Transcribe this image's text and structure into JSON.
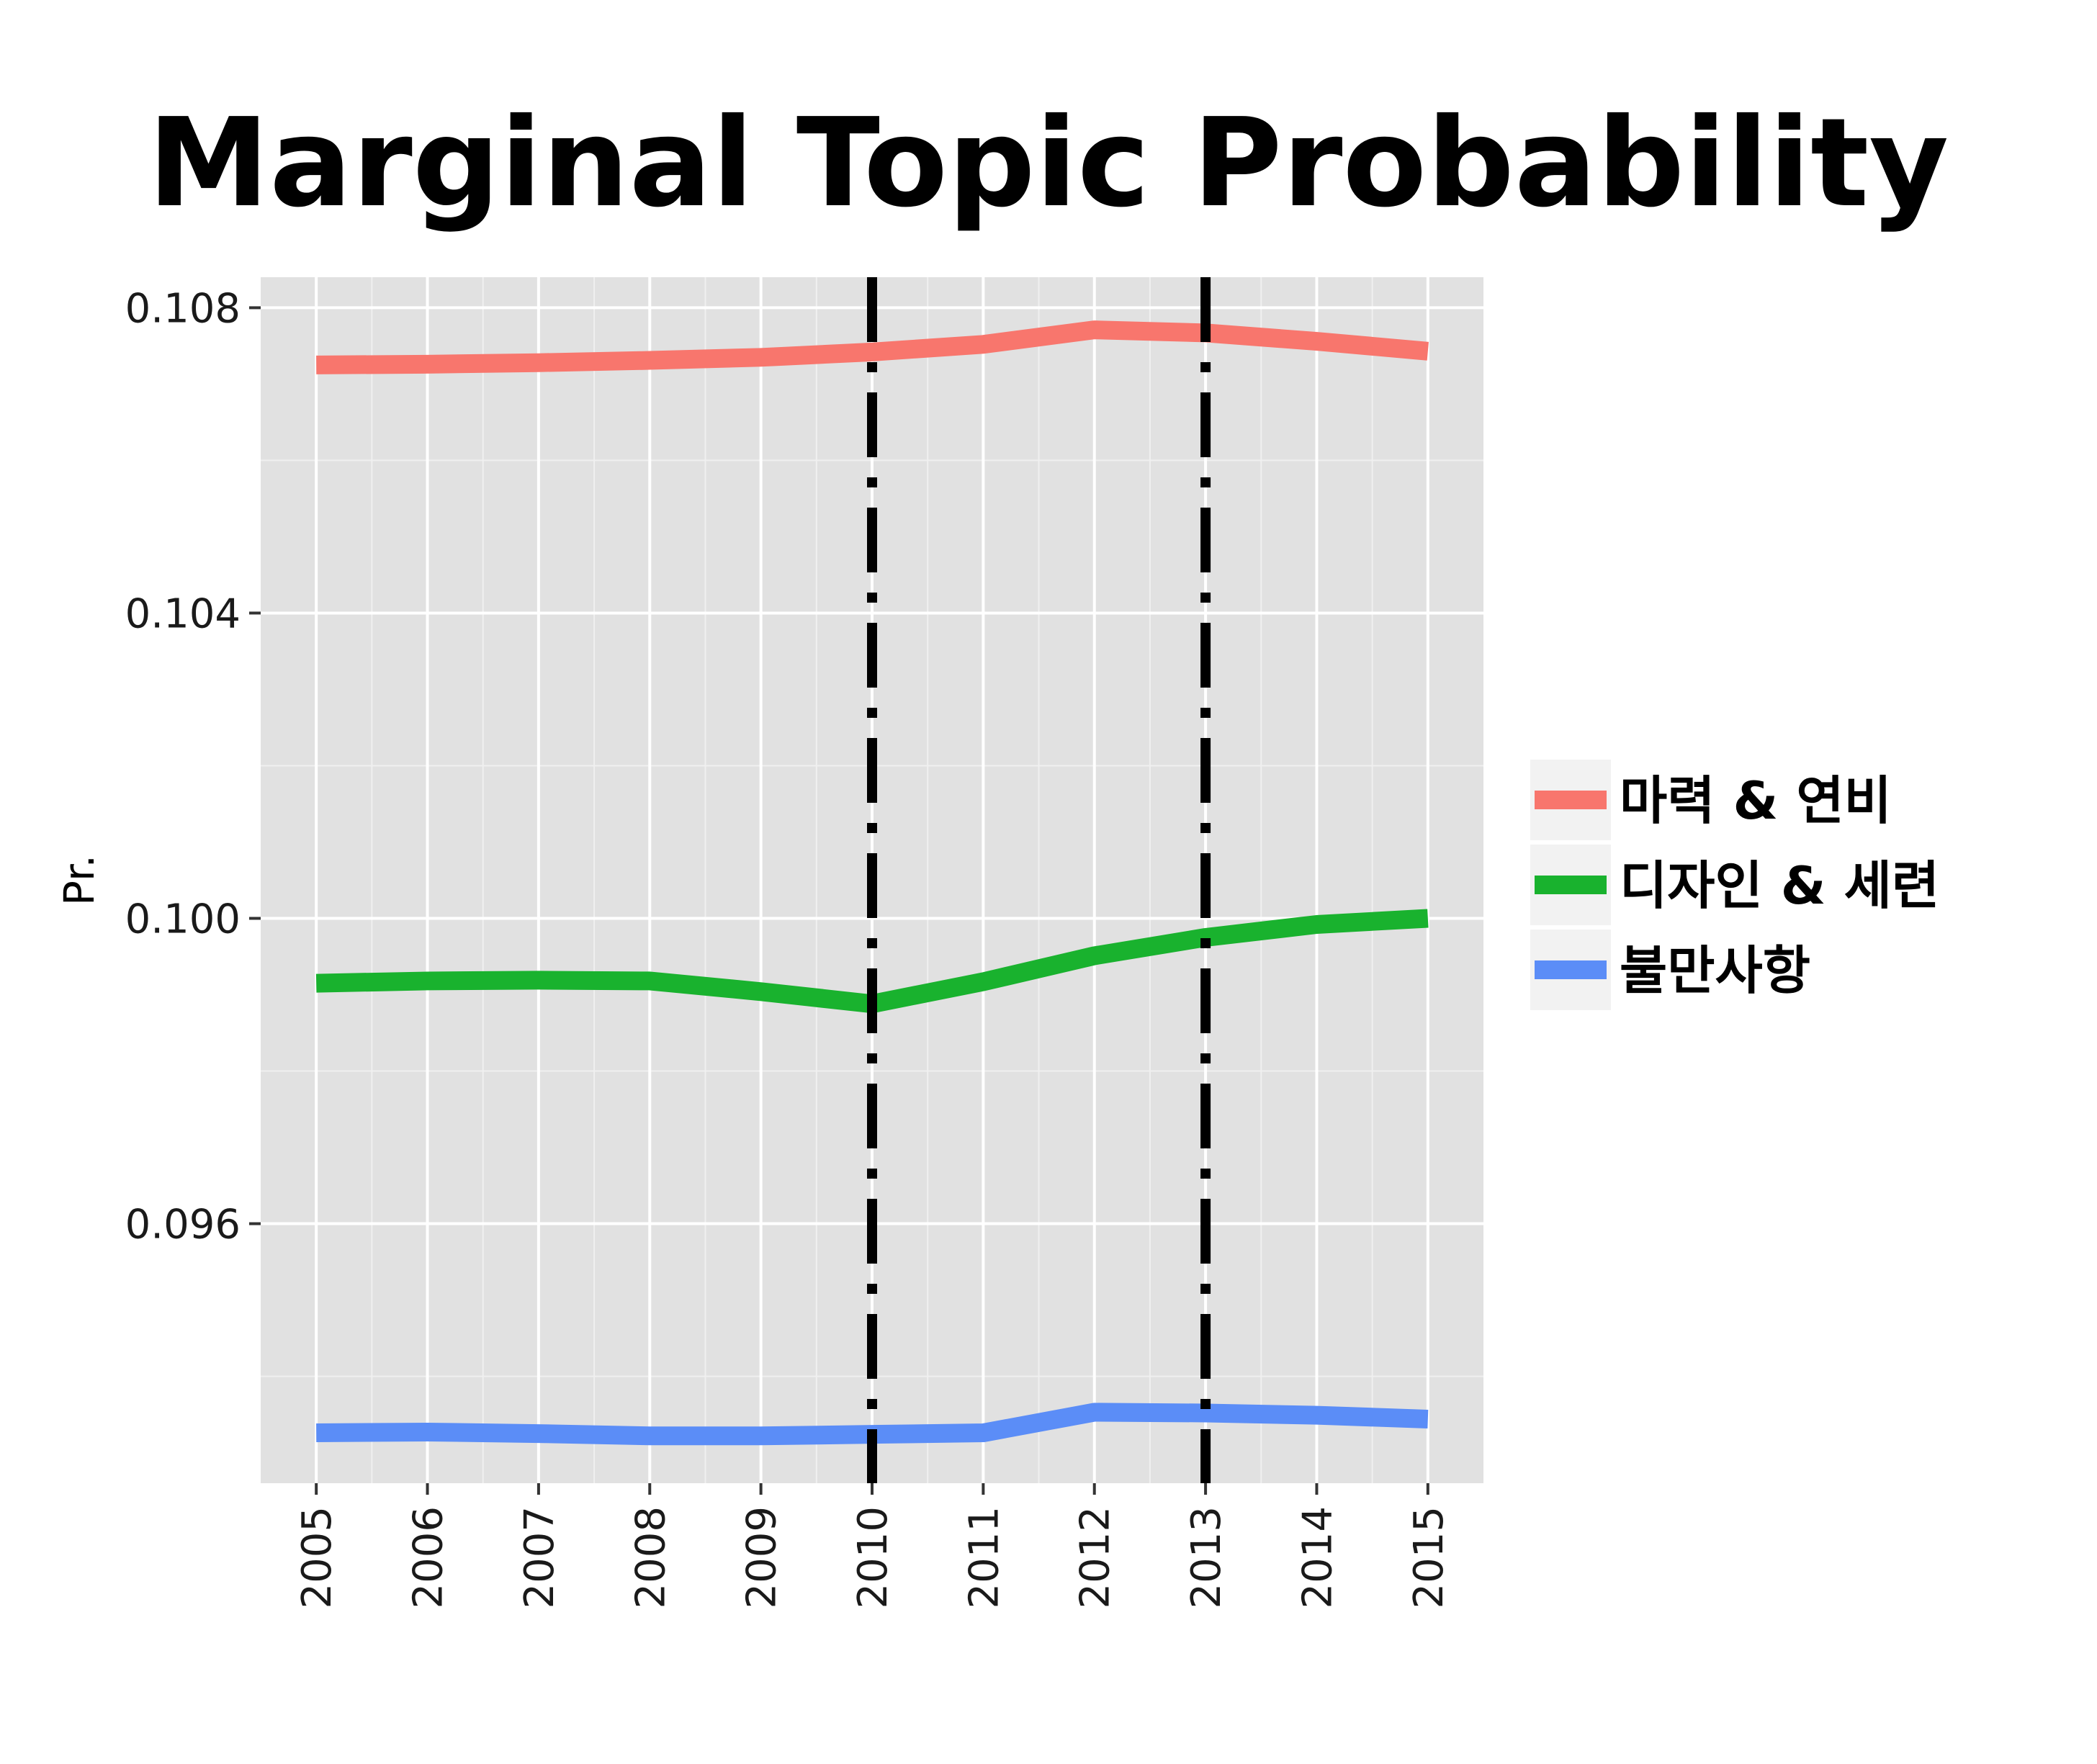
{
  "chart_data": {
    "type": "line",
    "title": "Marginal Topic Probability",
    "xlabel": "",
    "ylabel": "Pr.",
    "x": [
      2005,
      2006,
      2007,
      2008,
      2009,
      2010,
      2011,
      2012,
      2013,
      2014,
      2015
    ],
    "x_tick_labels": [
      "2005",
      "2006",
      "2007",
      "2008",
      "2009",
      "2010",
      "2011",
      "2012",
      "2013",
      "2014",
      "2015"
    ],
    "y_ticks": [
      0.096,
      0.1,
      0.104,
      0.108
    ],
    "y_tick_labels": [
      "0.096",
      "0.100",
      "0.104",
      "0.108"
    ],
    "xlim": [
      2004.5,
      2015.5
    ],
    "ylim": [
      0.0926,
      0.1084
    ],
    "grid": true,
    "legend_position": "right",
    "vlines": [
      {
        "x": 2010,
        "style": "dotdash",
        "color": "#000000"
      },
      {
        "x": 2013,
        "style": "dotdash",
        "color": "#000000"
      }
    ],
    "series": [
      {
        "name": "마력 & 연비",
        "color": "#F8766D",
        "values": [
          0.10725,
          0.10726,
          0.10728,
          0.10731,
          0.10735,
          0.10742,
          0.10752,
          0.10771,
          0.10767,
          0.10756,
          0.10743
        ]
      },
      {
        "name": "디자인 & 세련",
        "color": "#19B22E",
        "values": [
          0.09915,
          0.09918,
          0.09919,
          0.09918,
          0.09904,
          0.09888,
          0.09917,
          0.09951,
          0.09975,
          0.09992,
          0.1
        ]
      },
      {
        "name": "불만사항",
        "color": "#5B8DF7",
        "values": [
          0.09326,
          0.09327,
          0.09325,
          0.09322,
          0.09322,
          0.09324,
          0.09326,
          0.09353,
          0.09352,
          0.09349,
          0.09344
        ]
      }
    ]
  }
}
